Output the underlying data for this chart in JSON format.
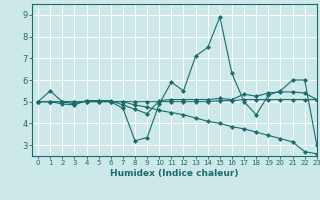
{
  "xlabel": "Humidex (Indice chaleur)",
  "xlim": [
    -0.5,
    23
  ],
  "ylim": [
    2.5,
    9.5
  ],
  "yticks": [
    3,
    4,
    5,
    6,
    7,
    8,
    9
  ],
  "xticks": [
    0,
    1,
    2,
    3,
    4,
    5,
    6,
    7,
    8,
    9,
    10,
    11,
    12,
    13,
    14,
    15,
    16,
    17,
    18,
    19,
    20,
    21,
    22,
    23
  ],
  "background_color": "#cde8e8",
  "line_color": "#1a6b6b",
  "grid_color": "#ffffff",
  "series": [
    [
      5.0,
      5.5,
      5.0,
      4.9,
      5.05,
      5.05,
      5.0,
      4.7,
      3.2,
      3.35,
      4.9,
      5.9,
      5.5,
      7.1,
      7.5,
      8.9,
      6.3,
      5.0,
      4.4,
      5.3,
      5.5,
      6.0,
      6.0,
      3.0
    ],
    [
      5.0,
      5.0,
      4.9,
      4.85,
      5.05,
      5.05,
      5.05,
      4.85,
      4.65,
      4.45,
      5.05,
      5.1,
      5.1,
      5.1,
      5.1,
      5.15,
      5.1,
      5.35,
      5.25,
      5.4,
      5.45,
      5.45,
      5.4,
      5.1
    ],
    [
      5.0,
      5.0,
      5.0,
      5.0,
      5.0,
      5.0,
      5.0,
      5.0,
      5.0,
      5.0,
      5.0,
      5.0,
      5.0,
      5.0,
      5.0,
      5.05,
      5.05,
      5.1,
      5.1,
      5.1,
      5.1,
      5.1,
      5.1,
      5.1
    ],
    [
      5.0,
      5.0,
      5.0,
      5.0,
      5.0,
      5.0,
      5.0,
      5.0,
      4.85,
      4.75,
      4.6,
      4.5,
      4.4,
      4.25,
      4.1,
      4.0,
      3.85,
      3.75,
      3.6,
      3.45,
      3.3,
      3.15,
      2.7,
      2.6
    ]
  ]
}
